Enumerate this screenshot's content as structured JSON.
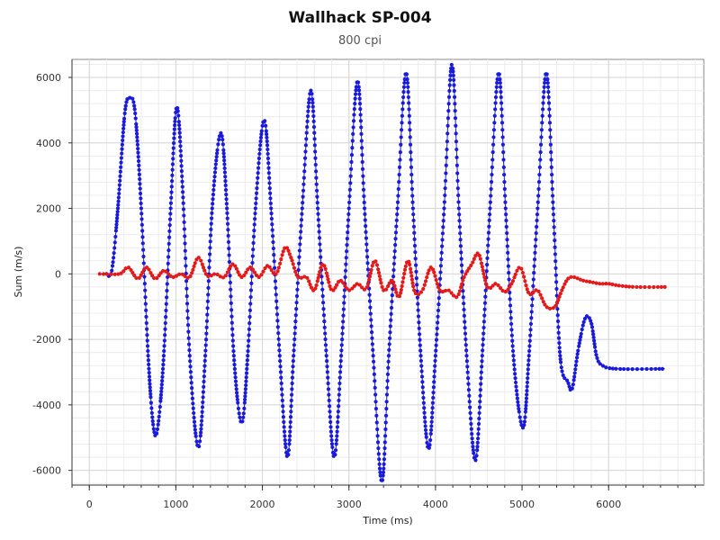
{
  "chart_data": {
    "type": "line",
    "title": "Wallhack SP-004",
    "subtitle": "800 cpi",
    "xlabel": "Time (ms)",
    "ylabel": "Sum (m/s)",
    "xlim": [
      -200,
      7100
    ],
    "ylim": [
      -6450,
      6550
    ],
    "x_ticks": [
      0,
      1000,
      2000,
      3000,
      4000,
      5000,
      6000
    ],
    "y_ticks": [
      -6000,
      -4000,
      -2000,
      0,
      2000,
      4000,
      6000
    ],
    "grid": true,
    "series": [
      {
        "color": "#1a1adc",
        "points": [
          [
            200,
            0
          ],
          [
            260,
            100
          ],
          [
            330,
            2000
          ],
          [
            410,
            4900
          ],
          [
            470,
            5380
          ],
          [
            530,
            4900
          ],
          [
            600,
            2000
          ],
          [
            680,
            -2500
          ],
          [
            740,
            -4650
          ],
          [
            790,
            -4700
          ],
          [
            860,
            -2500
          ],
          [
            940,
            2000
          ],
          [
            1010,
            5100
          ],
          [
            1080,
            2500
          ],
          [
            1160,
            -2500
          ],
          [
            1260,
            -5300
          ],
          [
            1340,
            -2500
          ],
          [
            1420,
            2000
          ],
          [
            1520,
            4300
          ],
          [
            1590,
            2000
          ],
          [
            1670,
            -2500
          ],
          [
            1760,
            -4550
          ],
          [
            1830,
            -2500
          ],
          [
            1920,
            2000
          ],
          [
            2020,
            4700
          ],
          [
            2100,
            2000
          ],
          [
            2200,
            -2500
          ],
          [
            2290,
            -5600
          ],
          [
            2360,
            -2500
          ],
          [
            2460,
            2000
          ],
          [
            2560,
            5600
          ],
          [
            2640,
            2000
          ],
          [
            2740,
            -2500
          ],
          [
            2830,
            -5600
          ],
          [
            2910,
            -2500
          ],
          [
            3000,
            2000
          ],
          [
            3100,
            5900
          ],
          [
            3180,
            2000
          ],
          [
            3280,
            -2500
          ],
          [
            3380,
            -6350
          ],
          [
            3460,
            -2500
          ],
          [
            3560,
            2000
          ],
          [
            3660,
            6150
          ],
          [
            3740,
            2000
          ],
          [
            3830,
            -2500
          ],
          [
            3920,
            -5350
          ],
          [
            4000,
            -2500
          ],
          [
            4100,
            2000
          ],
          [
            4190,
            6400
          ],
          [
            4270,
            2000
          ],
          [
            4360,
            -2500
          ],
          [
            4460,
            -5700
          ],
          [
            4540,
            -2500
          ],
          [
            4630,
            2000
          ],
          [
            4730,
            6150
          ],
          [
            4810,
            2000
          ],
          [
            4900,
            -2500
          ],
          [
            5010,
            -4700
          ],
          [
            5080,
            -2500
          ],
          [
            5180,
            2000
          ],
          [
            5280,
            6150
          ],
          [
            5360,
            2000
          ],
          [
            5440,
            -2500
          ],
          [
            5530,
            -3300
          ],
          [
            5580,
            -3500
          ],
          [
            5650,
            -2300
          ],
          [
            5730,
            -1350
          ],
          [
            5800,
            -1500
          ],
          [
            5860,
            -2500
          ],
          [
            5930,
            -2800
          ],
          [
            6100,
            -2900
          ],
          [
            6650,
            -2900
          ]
        ]
      },
      {
        "color": "#e61919",
        "points": [
          [
            120,
            0
          ],
          [
            350,
            0
          ],
          [
            450,
            200
          ],
          [
            560,
            -150
          ],
          [
            660,
            200
          ],
          [
            760,
            -150
          ],
          [
            860,
            100
          ],
          [
            960,
            -100
          ],
          [
            1060,
            0
          ],
          [
            1160,
            -100
          ],
          [
            1260,
            500
          ],
          [
            1360,
            -50
          ],
          [
            1460,
            0
          ],
          [
            1560,
            -100
          ],
          [
            1660,
            300
          ],
          [
            1760,
            -100
          ],
          [
            1860,
            200
          ],
          [
            1960,
            -100
          ],
          [
            2060,
            250
          ],
          [
            2160,
            0
          ],
          [
            2260,
            800
          ],
          [
            2330,
            500
          ],
          [
            2410,
            -100
          ],
          [
            2510,
            -100
          ],
          [
            2600,
            -500
          ],
          [
            2700,
            300
          ],
          [
            2800,
            -500
          ],
          [
            2900,
            -200
          ],
          [
            3000,
            -500
          ],
          [
            3100,
            -300
          ],
          [
            3200,
            -450
          ],
          [
            3300,
            400
          ],
          [
            3400,
            -500
          ],
          [
            3500,
            -200
          ],
          [
            3580,
            -700
          ],
          [
            3680,
            400
          ],
          [
            3760,
            -550
          ],
          [
            3850,
            -500
          ],
          [
            3950,
            200
          ],
          [
            4050,
            -500
          ],
          [
            4150,
            -500
          ],
          [
            4250,
            -700
          ],
          [
            4330,
            -100
          ],
          [
            4420,
            300
          ],
          [
            4500,
            600
          ],
          [
            4600,
            -400
          ],
          [
            4700,
            -300
          ],
          [
            4800,
            -550
          ],
          [
            4880,
            -300
          ],
          [
            4980,
            200
          ],
          [
            5080,
            -600
          ],
          [
            5180,
            -500
          ],
          [
            5280,
            -1000
          ],
          [
            5380,
            -1000
          ],
          [
            5460,
            -500
          ],
          [
            5530,
            -150
          ],
          [
            5600,
            -100
          ],
          [
            5700,
            -200
          ],
          [
            5800,
            -250
          ],
          [
            5900,
            -300
          ],
          [
            6000,
            -300
          ],
          [
            6100,
            -350
          ],
          [
            6300,
            -400
          ],
          [
            6650,
            -400
          ]
        ]
      }
    ]
  }
}
